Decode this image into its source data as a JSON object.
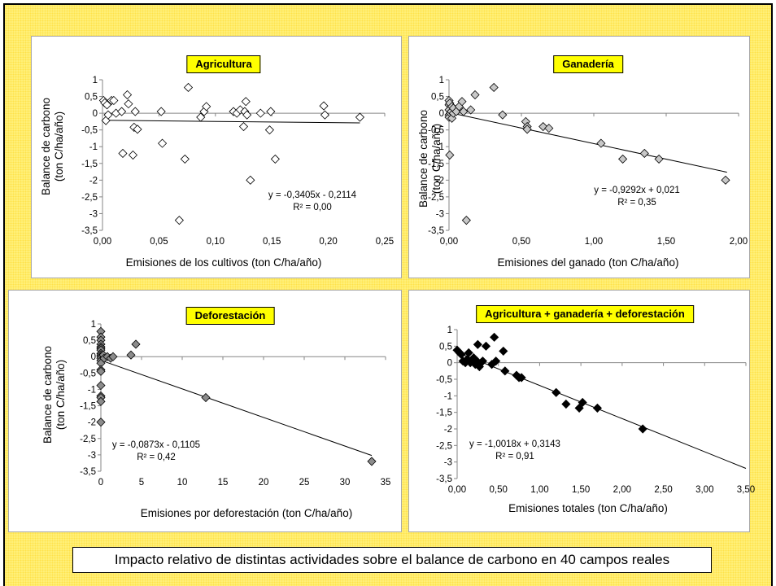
{
  "caption": "Impacto relativo de distintas actividades sobre el balance de carbono en 40 campos reales",
  "colors": {
    "background": "#fff07a",
    "title_box": "#ffff00",
    "marker_agri": "#ffffff",
    "marker_gan": "#c8c8c8",
    "marker_def": "#8c8c8c",
    "marker_total": "#000000"
  },
  "chart_data": [
    {
      "type": "scatter",
      "title": "Agricultura",
      "xlabel": "Emisiones de los cultivos (ton C/ha/año)",
      "ylabel": "Balance de carbono\n(ton C/ha/año)",
      "xlim": [
        0,
        0.25
      ],
      "ylim": [
        -3.5,
        1
      ],
      "xticks": [
        "0,00",
        "0,05",
        "0,10",
        "0,15",
        "0,20",
        "0,25"
      ],
      "yticks": [
        "1",
        "0,5",
        "0",
        "-0,5",
        "-1",
        "-1,5",
        "-2",
        "-2,5",
        "-3",
        "-3,5"
      ],
      "equation": "y = -0,3405x - 0,2114",
      "r2": "R² = 0,00",
      "trendline": {
        "slope": -0.3405,
        "intercept": -0.2114,
        "x_range": [
          0,
          0.228
        ]
      },
      "marker": "open-diamond",
      "points": [
        [
          0.001,
          0.38
        ],
        [
          0.002,
          0.31
        ],
        [
          0.003,
          -0.22
        ],
        [
          0.004,
          0.25
        ],
        [
          0.005,
          -0.05
        ],
        [
          0.008,
          0.38
        ],
        [
          0.01,
          0.38
        ],
        [
          0.012,
          0.0
        ],
        [
          0.017,
          0.05
        ],
        [
          0.018,
          -1.2
        ],
        [
          0.022,
          0.55
        ],
        [
          0.023,
          0.28
        ],
        [
          0.027,
          -1.25
        ],
        [
          0.028,
          -0.42
        ],
        [
          0.029,
          0.05
        ],
        [
          0.031,
          -0.48
        ],
        [
          0.052,
          0.05
        ],
        [
          0.053,
          -0.9
        ],
        [
          0.068,
          -3.2
        ],
        [
          0.073,
          -1.37
        ],
        [
          0.076,
          0.77
        ],
        [
          0.087,
          -0.12
        ],
        [
          0.09,
          0.05
        ],
        [
          0.092,
          0.2
        ],
        [
          0.116,
          0.05
        ],
        [
          0.119,
          0.0
        ],
        [
          0.122,
          0.1
        ],
        [
          0.125,
          -0.4
        ],
        [
          0.126,
          0.05
        ],
        [
          0.127,
          0.35
        ],
        [
          0.128,
          -0.05
        ],
        [
          0.131,
          -2.0
        ],
        [
          0.14,
          0.0
        ],
        [
          0.148,
          -0.5
        ],
        [
          0.149,
          0.05
        ],
        [
          0.153,
          -1.37
        ],
        [
          0.196,
          0.22
        ],
        [
          0.197,
          -0.05
        ],
        [
          0.228,
          -0.12
        ]
      ]
    },
    {
      "type": "scatter",
      "title": "Ganadería",
      "xlabel": "Emisiones del ganado (ton C/ha/año)",
      "ylabel": "Balance de carbono\n(ton C/ha/año)",
      "xlim": [
        0,
        2
      ],
      "ylim": [
        -3.5,
        1
      ],
      "xticks": [
        "0,00",
        "0,50",
        "1,00",
        "1,50",
        "2,00"
      ],
      "yticks": [
        "1",
        "0,5",
        "0",
        "-0,5",
        "-1",
        "-1,5",
        "-2",
        "-2,5",
        "-3",
        "-3,5"
      ],
      "equation": "y = -0,9292x + 0,021",
      "r2": "R² = 0,35",
      "trendline": {
        "slope": -0.9292,
        "intercept": 0.021,
        "x_range": [
          0,
          1.92
        ]
      },
      "marker": "diamond",
      "points": [
        [
          0.0,
          0.38
        ],
        [
          0.0,
          0.25
        ],
        [
          0.0,
          0.1
        ],
        [
          0.0,
          -0.05
        ],
        [
          0.0,
          -0.12
        ],
        [
          0.005,
          0.3
        ],
        [
          0.005,
          -1.25
        ],
        [
          0.01,
          0.0
        ],
        [
          0.015,
          0.05
        ],
        [
          0.02,
          -0.15
        ],
        [
          0.02,
          0.2
        ],
        [
          0.03,
          0.0
        ],
        [
          0.03,
          0.15
        ],
        [
          0.05,
          0.05
        ],
        [
          0.07,
          0.2
        ],
        [
          0.09,
          0.35
        ],
        [
          0.1,
          0.05
        ],
        [
          0.12,
          -3.2
        ],
        [
          0.15,
          0.1
        ],
        [
          0.18,
          0.55
        ],
        [
          0.31,
          0.77
        ],
        [
          0.37,
          -0.05
        ],
        [
          0.53,
          -0.25
        ],
        [
          0.54,
          -0.4
        ],
        [
          0.54,
          -0.48
        ],
        [
          0.65,
          -0.4
        ],
        [
          0.69,
          -0.45
        ],
        [
          1.05,
          -0.9
        ],
        [
          1.2,
          -1.37
        ],
        [
          1.35,
          -1.2
        ],
        [
          1.45,
          -1.37
        ],
        [
          1.91,
          -2.0
        ]
      ]
    },
    {
      "type": "scatter",
      "title": "Deforestación",
      "xlabel": "Emisiones  por deforestación (ton C/ha/año)",
      "ylabel": "Balance de carbono\n(ton C/ha/año)",
      "xlim": [
        0,
        35
      ],
      "ylim": [
        -3.5,
        1
      ],
      "xticks": [
        "0",
        "5",
        "10",
        "15",
        "20",
        "25",
        "30",
        "35"
      ],
      "yticks": [
        "1",
        "0,5",
        "0",
        "-0,5",
        "-1",
        "-1,5",
        "-2",
        "-2,5",
        "-3",
        "-3,5"
      ],
      "equation": "y = -0,0873x - 0,1105",
      "r2": "R² = 0,42",
      "trendline": {
        "slope": -0.0873,
        "intercept": -0.1105,
        "x_range": [
          0,
          33.3
        ]
      },
      "marker": "diamond",
      "points": [
        [
          0,
          0.77
        ],
        [
          0,
          0.6
        ],
        [
          0,
          0.5
        ],
        [
          0,
          0.38
        ],
        [
          0,
          0.3
        ],
        [
          0,
          0.25
        ],
        [
          0,
          0.2
        ],
        [
          0,
          0.1
        ],
        [
          0,
          0.05
        ],
        [
          0,
          0.0
        ],
        [
          0,
          -0.05
        ],
        [
          0,
          -0.12
        ],
        [
          0,
          -0.2
        ],
        [
          0,
          -0.4
        ],
        [
          0,
          -0.45
        ],
        [
          0,
          -0.88
        ],
        [
          0,
          -1.2
        ],
        [
          0,
          -1.25
        ],
        [
          0,
          -1.37
        ],
        [
          0,
          -2.0
        ],
        [
          0.3,
          0.05
        ],
        [
          0.4,
          -0.05
        ],
        [
          0.8,
          0.0
        ],
        [
          1.2,
          -0.05
        ],
        [
          1.5,
          0.0
        ],
        [
          3.7,
          0.05
        ],
        [
          4.3,
          0.38
        ],
        [
          12.9,
          -1.25
        ],
        [
          33.3,
          -3.2
        ]
      ]
    },
    {
      "type": "scatter",
      "title": "Agricultura + ganadería + deforestación",
      "xlabel": "Emisiones  totales (ton C/ha/año)",
      "ylabel": "",
      "xlim": [
        0,
        3.5
      ],
      "ylim": [
        -3.5,
        1
      ],
      "xticks": [
        "0,00",
        "0,50",
        "1,00",
        "1,50",
        "2,00",
        "2,50",
        "3,00",
        "3,50"
      ],
      "yticks": [
        "1",
        "0,5",
        "0",
        "-0,5",
        "-1",
        "-1,5",
        "-2",
        "-2,5",
        "-3",
        "-3,5"
      ],
      "equation": "y = -1,0018x + 0,3143",
      "r2": "R² = 0,91",
      "trendline": {
        "slope": -1.0018,
        "intercept": 0.3143,
        "x_range": [
          0,
          3.5
        ]
      },
      "marker": "diamond",
      "points": [
        [
          0.0,
          0.38
        ],
        [
          0.03,
          0.3
        ],
        [
          0.05,
          0.25
        ],
        [
          0.07,
          0.05
        ],
        [
          0.1,
          0.0
        ],
        [
          0.12,
          0.1
        ],
        [
          0.14,
          0.3
        ],
        [
          0.16,
          0.0
        ],
        [
          0.18,
          0.05
        ],
        [
          0.2,
          0.15
        ],
        [
          0.22,
          -0.05
        ],
        [
          0.24,
          0.05
        ],
        [
          0.25,
          0.55
        ],
        [
          0.27,
          -0.12
        ],
        [
          0.29,
          0.0
        ],
        [
          0.31,
          0.05
        ],
        [
          0.35,
          0.5
        ],
        [
          0.42,
          -0.05
        ],
        [
          0.45,
          0.77
        ],
        [
          0.47,
          0.05
        ],
        [
          0.56,
          0.35
        ],
        [
          0.58,
          -0.25
        ],
        [
          0.72,
          -0.38
        ],
        [
          0.75,
          -0.45
        ],
        [
          0.78,
          -0.45
        ],
        [
          1.2,
          -0.9
        ],
        [
          1.32,
          -1.25
        ],
        [
          1.48,
          -1.37
        ],
        [
          1.52,
          -1.2
        ],
        [
          1.7,
          -1.37
        ],
        [
          2.25,
          -2.0
        ]
      ]
    }
  ]
}
